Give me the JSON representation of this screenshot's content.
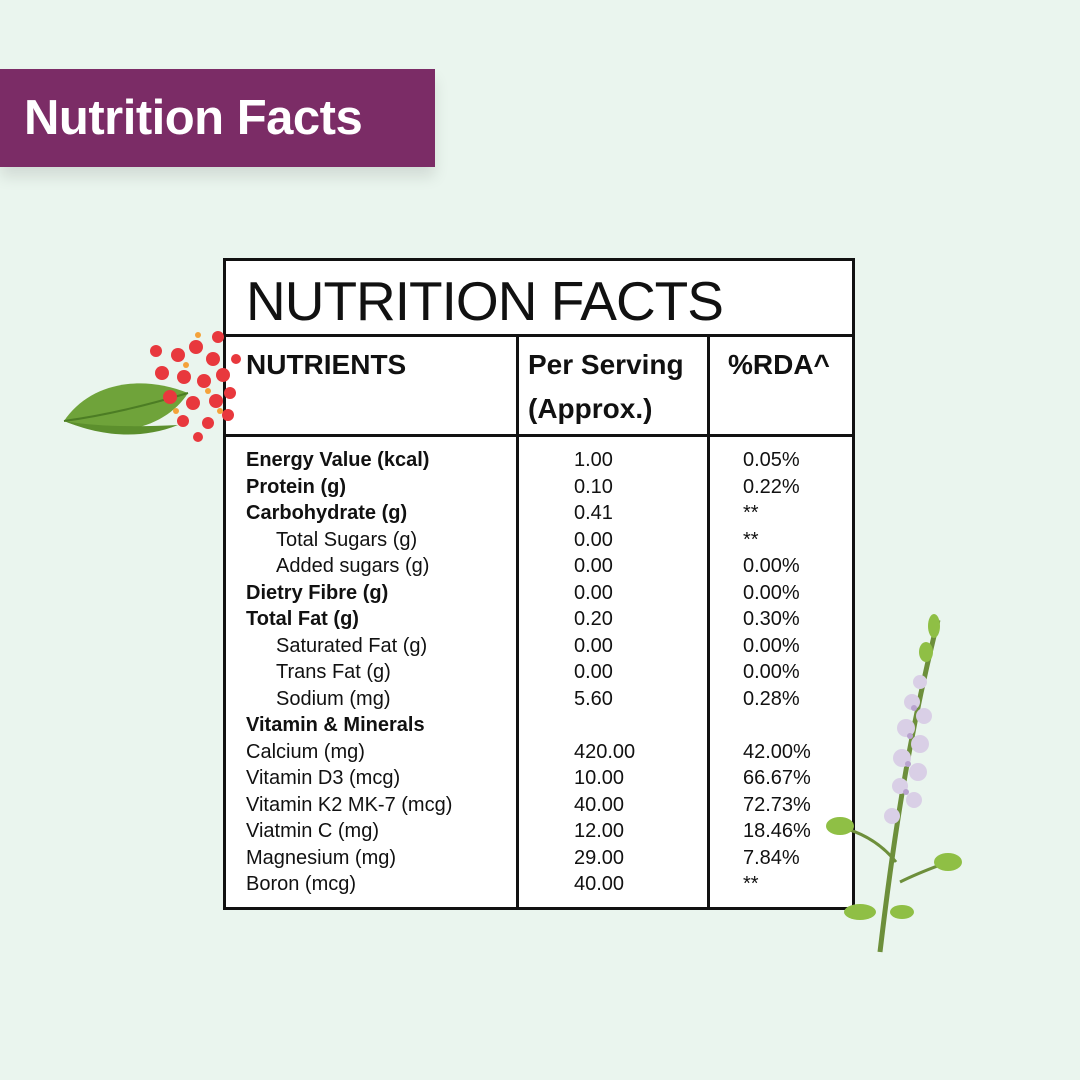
{
  "banner": {
    "title": "Nutrition Facts"
  },
  "panel": {
    "title": "NUTRITION FACTS",
    "headers": {
      "nutrients": "NUTRIENTS",
      "serving_line1": "Per Serving",
      "serving_line2": "(Approx.)",
      "rda": "%RDA^"
    },
    "rows": [
      {
        "name": "Energy Value (kcal)",
        "value": "1.00",
        "rda": "0.05%",
        "style": "bold"
      },
      {
        "name": "Protein (g)",
        "value": "0.10",
        "rda": "0.22%",
        "style": "bold"
      },
      {
        "name": "Carbohydrate (g)",
        "value": "0.41",
        "rda": "**",
        "style": "bold"
      },
      {
        "name": "Total Sugars (g)",
        "value": "0.00",
        "rda": "**",
        "style": "indent"
      },
      {
        "name": "Added sugars (g)",
        "value": "0.00",
        "rda": "0.00%",
        "style": "indent"
      },
      {
        "name": "Dietry Fibre (g)",
        "value": "0.00",
        "rda": "0.00%",
        "style": "bold"
      },
      {
        "name": "Total Fat (g)",
        "value": "0.20",
        "rda": "0.30%",
        "style": "bold"
      },
      {
        "name": "Saturated Fat (g)",
        "value": "0.00",
        "rda": "0.00%",
        "style": "indent"
      },
      {
        "name": "Trans Fat (g)",
        "value": "0.00",
        "rda": "0.00%",
        "style": "indent"
      },
      {
        "name": "Sodium (mg)",
        "value": "5.60",
        "rda": "0.28%",
        "style": "indent"
      },
      {
        "name": "Vitamin & Minerals",
        "value": "",
        "rda": "",
        "style": "bold"
      },
      {
        "name": "Calcium (mg)",
        "value": "420.00",
        "rda": "42.00%",
        "style": "normal"
      },
      {
        "name": "Vitamin D3 (mcg)",
        "value": "10.00",
        "rda": "66.67%",
        "style": "normal"
      },
      {
        "name": "Vitamin K2 MK-7 (mcg)",
        "value": "40.00",
        "rda": "72.73%",
        "style": "normal"
      },
      {
        "name": "Viatmin C (mg)",
        "value": "12.00",
        "rda": "18.46%",
        "style": "normal"
      },
      {
        "name": "Magnesium (mg)",
        "value": "29.00",
        "rda": "7.84%",
        "style": "normal"
      },
      {
        "name": "Boron (mcg)",
        "value": "40.00",
        "rda": "**",
        "style": "normal"
      }
    ]
  },
  "decorations": {
    "left": "red-flower-with-leaf-illustration",
    "right": "tulsi-flower-stem-illustration"
  },
  "colors": {
    "background": "#eaf5ee",
    "banner": "#7b2c66",
    "border": "#111111"
  }
}
